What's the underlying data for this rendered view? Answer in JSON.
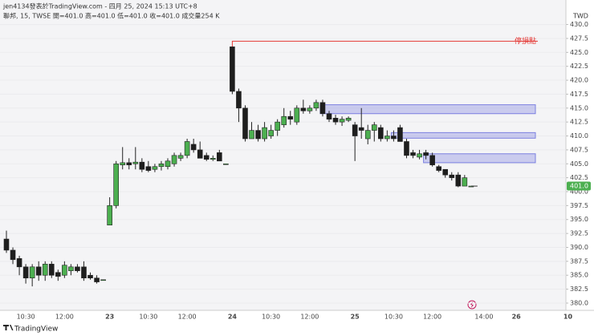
{
  "header": {
    "author_line": "jen4134發表於TradingView.com - 四月 25, 2024 15:13 UTC+8",
    "symbol_line": "聯邦, 15, TWSE  開=401.0  高=401.0  低=401.0  收=401.0  成交量254 K"
  },
  "footer": {
    "brand": "TradingView"
  },
  "chart_data": {
    "type": "candlestick",
    "currency": "TWD",
    "categories": [
      null,
      null,
      null,
      "10:30",
      null,
      null,
      null,
      null,
      null,
      "12:00",
      null,
      null,
      null,
      null,
      null,
      null,
      "23",
      null,
      null,
      null,
      null,
      null,
      "10:30",
      null,
      null,
      null,
      null,
      null,
      "12:00",
      null,
      null,
      null,
      null,
      null,
      null,
      "24",
      null,
      null,
      null,
      null,
      null,
      "10:30",
      null,
      null,
      null,
      null,
      null,
      "12:00",
      null,
      null,
      null,
      null,
      null,
      null,
      "25",
      null,
      null,
      null,
      null,
      null,
      "10:30",
      null,
      null,
      null,
      null,
      null,
      "12:00",
      null,
      null,
      null,
      null,
      null,
      null,
      null,
      "14:00",
      null,
      null,
      null,
      null,
      "26",
      null,
      null,
      null,
      null,
      null,
      null,
      null,
      "10"
    ],
    "open": [
      391.5,
      389.5,
      388,
      386.5,
      384.5,
      386.5,
      385,
      387,
      385.5,
      385,
      385.8,
      386.5,
      386.5,
      385,
      384.5,
      384.2,
      394,
      397.5,
      404.8,
      405.2,
      405,
      405.3,
      404.5,
      404,
      404.5,
      404.5,
      405,
      406,
      406.5,
      408.5,
      407.5,
      406.5,
      405.8,
      407,
      405,
      426,
      418,
      415,
      409.5,
      411,
      409.5,
      410,
      411,
      412,
      413.5,
      412.5,
      415,
      414.5,
      415,
      416,
      414,
      413.2,
      412.5,
      412.8,
      412,
      411.5,
      409.5,
      411,
      411.5,
      409.5,
      410,
      411.5,
      409,
      407,
      406.2,
      407,
      406.5,
      404.5,
      404,
      403,
      403,
      401,
      401,
      null,
      null,
      null,
      null,
      null,
      null,
      null,
      null,
      null,
      null,
      null,
      null,
      null,
      null,
      null
    ],
    "high": [
      393,
      390,
      388.5,
      387,
      387,
      387.5,
      387.5,
      387.5,
      386,
      387.5,
      387,
      387,
      387.5,
      385.5,
      385,
      384.2,
      399,
      405.5,
      408,
      406,
      408,
      406,
      405.5,
      405,
      405.5,
      406,
      407,
      407,
      409.5,
      409.5,
      409,
      407,
      406.5,
      407.5,
      405,
      426,
      418.5,
      415.5,
      412.5,
      412,
      412.5,
      412,
      413,
      415,
      414.5,
      415.5,
      416.5,
      415.5,
      416.5,
      416.5,
      414.5,
      413.8,
      413.5,
      413.5,
      412.5,
      415,
      412,
      412.5,
      412,
      411,
      411,
      412,
      409.5,
      407.5,
      407.5,
      407.5,
      407,
      404.8,
      404,
      403.5,
      403.5,
      403,
      401,
      null,
      null,
      null,
      null,
      null,
      null,
      null,
      null,
      null,
      null,
      null,
      null,
      null,
      null,
      null
    ],
    "low": [
      389,
      387,
      385,
      383.5,
      383,
      384,
      384,
      384.5,
      384,
      384.5,
      385,
      385.5,
      384,
      384.2,
      383.5,
      384.2,
      394,
      397,
      404,
      404,
      404,
      403.5,
      403.5,
      403.5,
      403.8,
      404,
      404.5,
      405.5,
      406,
      407,
      406,
      405.5,
      405.5,
      405.5,
      405,
      417.5,
      412.5,
      409,
      409.5,
      409,
      409,
      409.5,
      410,
      411.5,
      412,
      412,
      414,
      414,
      414.5,
      413.5,
      412.5,
      412,
      411.8,
      412.5,
      405.5,
      409.5,
      408.5,
      409,
      409,
      409,
      409,
      409,
      406,
      406,
      405.8,
      405.8,
      404.5,
      403.5,
      402.5,
      402,
      400.8,
      401,
      401,
      null,
      null,
      null,
      null,
      null,
      null,
      null,
      null,
      null,
      null,
      null,
      null,
      null,
      null,
      null
    ],
    "close": [
      389.5,
      387.8,
      386.5,
      384.5,
      386.5,
      385,
      387,
      385,
      384.8,
      386.8,
      386.5,
      385.8,
      384.5,
      384.5,
      383.8,
      384.2,
      397.5,
      405,
      405.2,
      404.8,
      405.3,
      404,
      403.8,
      404.5,
      405,
      405.5,
      406.5,
      406.5,
      409,
      407.5,
      406,
      405.8,
      406,
      405.5,
      405,
      418,
      415,
      409.5,
      411,
      409.5,
      411.5,
      411,
      412.5,
      413.5,
      413,
      415,
      414.5,
      415,
      416,
      414,
      413,
      412.5,
      413,
      413.2,
      410,
      411,
      411,
      412,
      409.5,
      410,
      409.5,
      409,
      406.5,
      406.5,
      406.8,
      406.5,
      404.8,
      403.8,
      403,
      402.5,
      401,
      402.5,
      401,
      null,
      null,
      null,
      null,
      null,
      null,
      null,
      null,
      null,
      null,
      null,
      null,
      null,
      null,
      null
    ],
    "up_color": "#4caf50",
    "down_color": "#1e1e1e",
    "ylim": [
      378.7,
      434.4
    ],
    "yticks": [
      {
        "value": 380,
        "label": "380.0"
      },
      {
        "value": 382.5,
        "label": "382.5"
      },
      {
        "value": 385,
        "label": "385.0"
      },
      {
        "value": 387.5,
        "label": "387.5"
      },
      {
        "value": 390,
        "label": "390.0"
      },
      {
        "value": 392.5,
        "label": "392.5"
      },
      {
        "value": 395,
        "label": "395.0"
      },
      {
        "value": 397.5,
        "label": "397.5"
      },
      {
        "value": 400,
        "label": "400.0"
      },
      {
        "value": 402.5,
        "label": "402.5"
      },
      {
        "value": 405,
        "label": "405.0"
      },
      {
        "value": 407.5,
        "label": "407.5"
      },
      {
        "value": 410,
        "label": "410.0"
      },
      {
        "value": 412.5,
        "label": "412.5"
      },
      {
        "value": 415,
        "label": "415.0"
      },
      {
        "value": 417.5,
        "label": "417.5"
      },
      {
        "value": 420,
        "label": "420.0"
      },
      {
        "value": 422.5,
        "label": "422.5"
      },
      {
        "value": 425,
        "label": "425.0"
      },
      {
        "value": 427.5,
        "label": "427.5"
      },
      {
        "value": 430,
        "label": "430.0"
      }
    ],
    "last_price": {
      "value": 401,
      "label": "401.0"
    },
    "stop_line": {
      "label": "停損點",
      "value": 427,
      "color": "#e53935"
    },
    "zones": [
      {
        "high": 415.6,
        "low": 414.0
      },
      {
        "high": 410.6,
        "low": 409.6
      },
      {
        "high": 406.8,
        "low": 405.2
      }
    ],
    "zone_color": "#7b7fe0"
  }
}
